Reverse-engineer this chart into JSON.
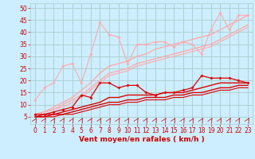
{
  "xlabel": "Vent moyen/en rafales ( km/h )",
  "x": [
    0,
    1,
    2,
    3,
    4,
    5,
    6,
    7,
    8,
    9,
    10,
    11,
    12,
    13,
    14,
    15,
    16,
    17,
    18,
    19,
    20,
    21,
    22,
    23
  ],
  "bg_color": "#cceeff",
  "grid_color": "#aacccc",
  "ylim": [
    2,
    52
  ],
  "xlim": [
    -0.5,
    23.5
  ],
  "yticks": [
    5,
    10,
    15,
    20,
    25,
    30,
    35,
    40,
    45,
    50
  ],
  "xticks": [
    0,
    1,
    2,
    3,
    4,
    5,
    6,
    7,
    8,
    9,
    10,
    11,
    12,
    13,
    14,
    15,
    16,
    17,
    18,
    19,
    20,
    21,
    22,
    23
  ],
  "line1_color": "#ffaaaa",
  "line1_data": [
    12,
    17,
    19,
    26,
    27,
    19,
    31,
    44,
    39,
    38,
    27,
    35,
    35,
    36,
    36,
    34,
    36,
    35,
    31,
    41,
    48,
    41,
    47,
    47
  ],
  "line2_color": "#ffaaaa",
  "line2_data": [
    6,
    7,
    9,
    11,
    13,
    16,
    19,
    23,
    26,
    27,
    28,
    30,
    31,
    33,
    34,
    35,
    36,
    37,
    38,
    39,
    41,
    43,
    45,
    47
  ],
  "line3_color": "#ffaaaa",
  "line3_data": [
    6,
    7,
    8,
    10,
    12,
    14,
    17,
    20,
    23,
    24,
    25,
    27,
    28,
    29,
    30,
    31,
    32,
    33,
    34,
    35,
    37,
    39,
    41,
    43
  ],
  "line4_color": "#ffaaaa",
  "line4_data": [
    6,
    7,
    8,
    9,
    11,
    13,
    16,
    19,
    22,
    23,
    24,
    26,
    27,
    28,
    29,
    30,
    31,
    32,
    33,
    34,
    36,
    38,
    40,
    42
  ],
  "line5_color": "#dd0000",
  "line5_data": [
    6,
    6,
    7,
    8,
    9,
    14,
    13,
    19,
    19,
    17,
    18,
    18,
    15,
    14,
    15,
    15,
    16,
    17,
    22,
    21,
    21,
    21,
    20,
    19
  ],
  "line6_color": "#dd0000",
  "line6_data": [
    5,
    6,
    6,
    7,
    8,
    9,
    10,
    11,
    13,
    13,
    14,
    14,
    14,
    14,
    15,
    15,
    15,
    16,
    17,
    18,
    19,
    19,
    19,
    19
  ],
  "line7_color": "#dd0000",
  "line7_data": [
    5,
    5,
    6,
    6,
    7,
    8,
    9,
    10,
    11,
    11,
    12,
    12,
    13,
    13,
    13,
    14,
    14,
    15,
    15,
    16,
    17,
    17,
    18,
    18
  ],
  "line8_color": "#dd0000",
  "line8_data": [
    5,
    5,
    5,
    6,
    6,
    7,
    8,
    9,
    10,
    10,
    11,
    11,
    12,
    12,
    12,
    13,
    13,
    14,
    14,
    15,
    16,
    16,
    17,
    17
  ],
  "xlabel_color": "#cc0000",
  "tick_color": "#cc0000",
  "label_fontsize": 6.5,
  "tick_fontsize": 5.5
}
